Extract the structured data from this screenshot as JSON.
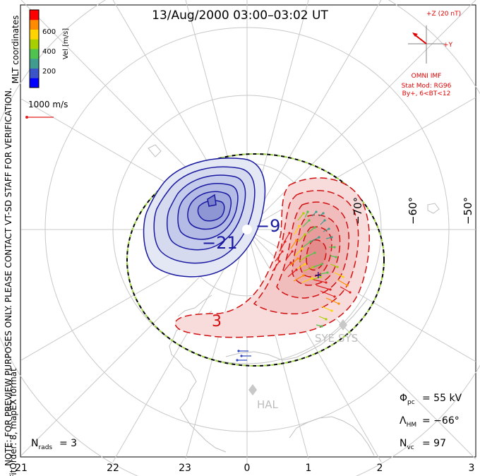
{
  "title": "13/Aug/2000 03:00–03:02 UT",
  "coord_label": "MLT coordinates",
  "side_note_line1": "NOTE: FOR PREVIEW PURPOSES ONLY. PLEASE CONTACT VT-SD STAFF FOR VERIFICATION.",
  "side_note_line2": "FitOrder: 8, mapEX format",
  "colorbar": {
    "label": "Vel [m/s]",
    "ticks": [
      "600",
      "400",
      "200"
    ],
    "colors": [
      "#0000ff",
      "#3a55c8",
      "#3f9c8f",
      "#4fc24f",
      "#a8d000",
      "#ffd400",
      "#ff8c00",
      "#ff0000"
    ]
  },
  "vector_scale": {
    "label": "1000 m/s",
    "color": "#e02020"
  },
  "imf": {
    "z_label": "+Z (20 nT)",
    "y_label": "+Y",
    "source": "OMNI IMF",
    "stat_model": "Stat Mod: RG96",
    "condition": "By+, 6<BT<12",
    "color": "#e00000"
  },
  "latitude_labels": [
    "−70°",
    "−60°",
    "−50°"
  ],
  "mlt_labels": [
    "21",
    "22",
    "23",
    "0",
    "1",
    "2",
    "3"
  ],
  "contour_labels": {
    "negative": [
      "−21",
      "−9"
    ],
    "positive": [
      "3",
      "+"
    ]
  },
  "station_labels": [
    "SYE SYS",
    "HAL"
  ],
  "stats": {
    "phi_pc": "= 55 kV",
    "lambda_hm": "= −66°",
    "n_vc": "= 97",
    "n_rads": "= 3"
  }
}
